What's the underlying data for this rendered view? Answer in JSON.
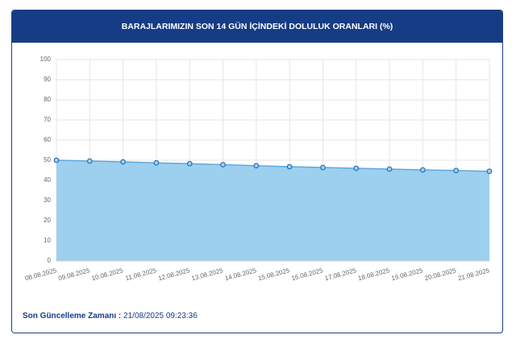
{
  "chart_data": {
    "type": "area",
    "title": "BARAJLARIMIZIN SON 14 GÜN İÇİNDEKİ DOLULUK ORANLARI (%)",
    "categories": [
      "08.08.2025",
      "09.08.2025",
      "10.08.2025",
      "11.08.2025",
      "12.08.2025",
      "13.08.2025",
      "14.08.2025",
      "15.08.2025",
      "16.08.2025",
      "17.08.2025",
      "18.08.2025",
      "19.08.2025",
      "20.08.2025",
      "21.08.2025"
    ],
    "values": [
      50.0,
      49.6,
      49.2,
      48.7,
      48.3,
      47.8,
      47.3,
      46.8,
      46.4,
      46.0,
      45.6,
      45.2,
      44.9,
      44.5
    ],
    "color": "#9dd0ee",
    "line_color": "#5fa9dd",
    "point_color": "#2a6fb5",
    "ylim": [
      0,
      100
    ],
    "yticks": [
      0,
      10,
      20,
      30,
      40,
      50,
      60,
      70,
      80,
      90,
      100
    ],
    "grid": true
  },
  "footer": {
    "label": "Son Güncelleme Zamanı :",
    "value": "21/08/2025 09:23:36"
  }
}
